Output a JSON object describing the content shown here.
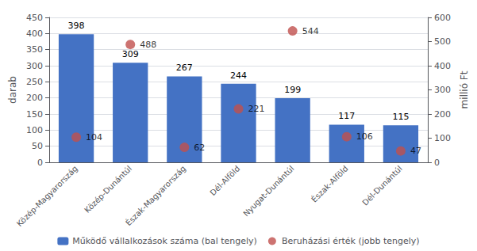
{
  "chart_data": {
    "type": "bar",
    "categories": [
      "Közép-Magyarország",
      "Közép-Dunántúl",
      "Észak-Magyarország",
      "Dél-Alföld",
      "Nyugat-Dunántúl",
      "Észak-Alföld",
      "Dél-Dunántúl"
    ],
    "series": [
      {
        "name": "Működő vállalkozások száma (bal tengely)",
        "type": "bar",
        "color": "#4472C4",
        "values": [
          398,
          309,
          267,
          244,
          199,
          117,
          115
        ]
      },
      {
        "name": "Beruházási érték (jobb tengely)",
        "type": "scatter",
        "marker": "circle",
        "axis": "y2",
        "color": "#C0504D",
        "values": [
          104,
          488,
          62,
          221,
          544,
          106,
          47
        ]
      }
    ],
    "ylabel": "darab",
    "y2label": "millió Ft",
    "ylim": [
      0,
      450
    ],
    "yticks": [
      0,
      50,
      100,
      150,
      200,
      250,
      300,
      350,
      400,
      450
    ],
    "y2lim": [
      0,
      600
    ],
    "y2ticks": [
      0,
      100,
      200,
      300,
      400,
      500,
      600
    ],
    "grid": true,
    "data_labels": true,
    "legend": "bottom"
  }
}
